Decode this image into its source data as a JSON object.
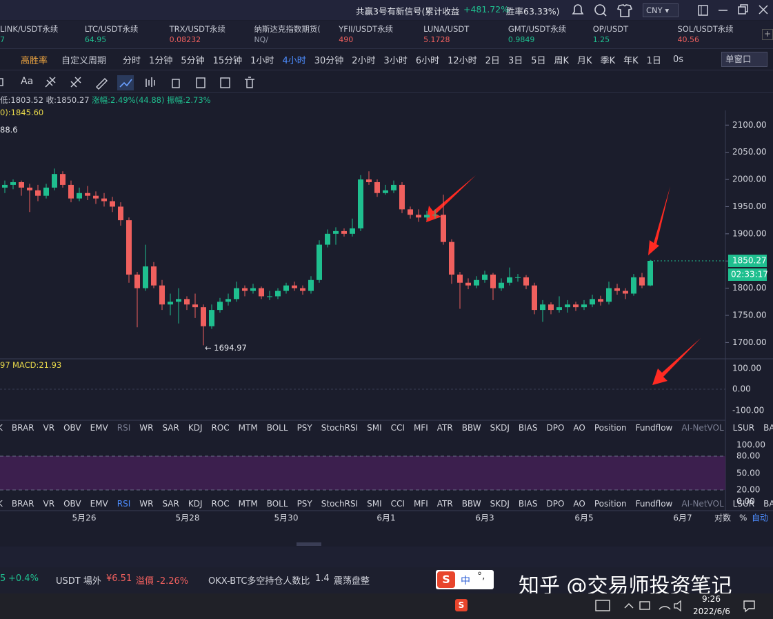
{
  "header": {
    "signal": "共赢3号有新信号(累计收益",
    "gain": "+481.72%",
    "winrate": "胜率63.33%)",
    "currency": "CNY"
  },
  "tickers": [
    {
      "name": "LINK/USDT永续",
      "price": "7",
      "color": "#1fbf8f"
    },
    {
      "name": "LTC/USDT永续",
      "price": "64.95",
      "color": "#1fbf8f"
    },
    {
      "name": "TRX/USDT永续",
      "price": "0.08232",
      "color": "#f0605e"
    },
    {
      "name": "纳斯达克指数期货(",
      "price": "NQ/",
      "color": "#9aa0b0"
    },
    {
      "name": "YFII/USDT永续",
      "price": "490",
      "color": "#f0605e"
    },
    {
      "name": "LUNA/USDT",
      "price": "5.1728",
      "color": "#f0605e"
    },
    {
      "name": "GMT/USDT永续",
      "price": "0.9849",
      "color": "#1fbf8f"
    },
    {
      "name": "OP/USDT",
      "price": "1.25",
      "color": "#1fbf8f"
    },
    {
      "name": "SOL/USDT永续",
      "price": "40.56",
      "color": "#f0605e"
    }
  ],
  "periods": {
    "badge": "高胜率",
    "custom": "自定义周期",
    "items": [
      "分时",
      "1分钟",
      "5分钟",
      "15分钟",
      "1小时",
      "4小时",
      "30分钟",
      "2小时",
      "3小时",
      "6小时",
      "12小时",
      "2日",
      "3日",
      "5日",
      "周K",
      "月K",
      "季K",
      "年K",
      "1日"
    ],
    "active": "4小时",
    "timer": "0s",
    "window": "单窗口"
  },
  "toolbar": {
    "text": "Aa"
  },
  "info": {
    "low": "低:1803.52",
    "close": "收:1850.27",
    "change": "涨幅:2.49%(44.88)",
    "amp": "振幅:2.73%",
    "ma": "0):1845.60",
    "ma2": "88.6"
  },
  "chart_data": {
    "type": "candlestick",
    "ylim": [
      1670,
      2127
    ],
    "yticks": [
      {
        "value": 1700,
        "label": "1700.00"
      },
      {
        "value": 1750,
        "label": "1750.00"
      },
      {
        "value": 1800,
        "label": "1800.00"
      },
      {
        "value": 1850,
        "label": "1850.00"
      },
      {
        "value": 1900,
        "label": "1900.00"
      },
      {
        "value": 1950,
        "label": "1950.00"
      },
      {
        "value": 2000,
        "label": "2000.00"
      },
      {
        "value": 2050,
        "label": "2050.00"
      },
      {
        "value": 2100,
        "label": "2100.00"
      }
    ],
    "up_color": "#1fbf8f",
    "down_color": "#f0605e",
    "candles": [
      [
        1985,
        1998,
        1975,
        1990
      ],
      [
        1990,
        2000,
        1982,
        1995
      ],
      [
        1995,
        1998,
        1970,
        1985
      ],
      [
        1985,
        1992,
        1940,
        1980
      ],
      [
        1980,
        1990,
        1960,
        1970
      ],
      [
        1970,
        1992,
        1965,
        1985
      ],
      [
        1985,
        2020,
        1980,
        2010
      ],
      [
        2010,
        2015,
        1985,
        1990
      ],
      [
        1990,
        1998,
        1958,
        1965
      ],
      [
        1965,
        1985,
        1960,
        1975
      ],
      [
        1975,
        1988,
        1962,
        1970
      ],
      [
        1970,
        1978,
        1955,
        1965
      ],
      [
        1965,
        1975,
        1950,
        1960
      ],
      [
        1960,
        1968,
        1940,
        1950
      ],
      [
        1950,
        1958,
        1915,
        1925
      ],
      [
        1925,
        1930,
        1810,
        1825
      ],
      [
        1825,
        1830,
        1728,
        1800
      ],
      [
        1800,
        1880,
        1795,
        1840
      ],
      [
        1840,
        1848,
        1800,
        1805
      ],
      [
        1805,
        1815,
        1760,
        1770
      ],
      [
        1770,
        1790,
        1750,
        1775
      ],
      [
        1775,
        1800,
        1735,
        1780
      ],
      [
        1780,
        1785,
        1760,
        1770
      ],
      [
        1770,
        1790,
        1745,
        1765
      ],
      [
        1765,
        1770,
        1694.97,
        1730
      ],
      [
        1730,
        1770,
        1725,
        1760
      ],
      [
        1760,
        1782,
        1755,
        1775
      ],
      [
        1775,
        1790,
        1768,
        1780
      ],
      [
        1780,
        1812,
        1775,
        1800
      ],
      [
        1800,
        1805,
        1785,
        1795
      ],
      [
        1795,
        1808,
        1790,
        1800
      ],
      [
        1800,
        1803,
        1780,
        1785
      ],
      [
        1785,
        1795,
        1778,
        1785
      ],
      [
        1785,
        1800,
        1780,
        1795
      ],
      [
        1795,
        1810,
        1790,
        1805
      ],
      [
        1805,
        1812,
        1795,
        1800
      ],
      [
        1800,
        1805,
        1788,
        1795
      ],
      [
        1795,
        1822,
        1790,
        1815
      ],
      [
        1815,
        1888,
        1810,
        1880
      ],
      [
        1880,
        1908,
        1875,
        1900
      ],
      [
        1900,
        1912,
        1880,
        1905
      ],
      [
        1905,
        1910,
        1895,
        1900
      ],
      [
        1900,
        1928,
        1895,
        1910
      ],
      [
        1910,
        2008,
        1905,
        2000
      ],
      [
        2000,
        2015,
        1990,
        1995
      ],
      [
        1995,
        2000,
        1968,
        1975
      ],
      [
        1975,
        1990,
        1972,
        1980
      ],
      [
        1980,
        1998,
        1975,
        1990
      ],
      [
        1990,
        1995,
        1938,
        1945
      ],
      [
        1945,
        1950,
        1928,
        1935
      ],
      [
        1935,
        1945,
        1922,
        1930
      ],
      [
        1930,
        1942,
        1925,
        1935
      ],
      [
        1935,
        1945,
        1928,
        1935
      ],
      [
        1935,
        1972,
        1880,
        1885
      ],
      [
        1885,
        1890,
        1808,
        1825
      ],
      [
        1825,
        1830,
        1762,
        1810
      ],
      [
        1810,
        1818,
        1798,
        1805
      ],
      [
        1805,
        1822,
        1800,
        1815
      ],
      [
        1815,
        1832,
        1810,
        1825
      ],
      [
        1825,
        1828,
        1778,
        1800
      ],
      [
        1800,
        1818,
        1795,
        1810
      ],
      [
        1810,
        1838,
        1805,
        1820
      ],
      [
        1820,
        1826,
        1812,
        1820
      ],
      [
        1820,
        1824,
        1798,
        1805
      ],
      [
        1805,
        1810,
        1752,
        1760
      ],
      [
        1760,
        1778,
        1738,
        1770
      ],
      [
        1770,
        1774,
        1752,
        1760
      ],
      [
        1760,
        1785,
        1755,
        1765
      ],
      [
        1765,
        1778,
        1755,
        1770
      ],
      [
        1770,
        1775,
        1758,
        1765
      ],
      [
        1765,
        1778,
        1760,
        1770
      ],
      [
        1770,
        1788,
        1765,
        1780
      ],
      [
        1780,
        1786,
        1768,
        1775
      ],
      [
        1775,
        1812,
        1770,
        1800
      ],
      [
        1800,
        1808,
        1788,
        1795
      ],
      [
        1795,
        1800,
        1780,
        1790
      ],
      [
        1790,
        1826,
        1786,
        1820
      ],
      [
        1820,
        1828,
        1800,
        1805
      ],
      [
        1805,
        1852,
        1803.52,
        1850.27
      ]
    ],
    "min_label": "← 1694.97",
    "last_price": 1850.27,
    "last_label": "1850.27",
    "countdown": "02:33:17"
  },
  "macd": {
    "prefix": "97",
    "label": "MACD:21.93",
    "ticks": [
      "100.00",
      "0.00",
      "-100.00"
    ]
  },
  "indicators": [
    "K",
    "BRAR",
    "VR",
    "OBV",
    "EMV",
    "RSI",
    "WR",
    "SAR",
    "KDJ",
    "ROC",
    "MTM",
    "BOLL",
    "PSY",
    "StochRSI",
    "SMI",
    "CCI",
    "MFI",
    "ATR",
    "BBW",
    "SKDJ",
    "BIAS",
    "DPO",
    "AO",
    "Position",
    "Fundflow",
    "AI-NetVOL",
    "LSUR",
    "BASIS"
  ],
  "rsi": {
    "ticks": [
      "100.00",
      "80.00",
      "50.00",
      "20.00",
      "0.00"
    ]
  },
  "dates": [
    "5月26",
    "5月28",
    "5月30",
    "6月1",
    "6月3",
    "6月5",
    "6月7"
  ],
  "axis_opts": [
    "对数",
    "%",
    "自动"
  ],
  "footer": {
    "a": "5",
    "b": "+0.4%",
    "c": "USDT 場外",
    "d": "¥6.51",
    "e": "溢價 -2.26%",
    "f": "OKX-BTC多空持仓人数比",
    "g": "1.4",
    "h": "震荡盘整"
  },
  "ime": "中",
  "watermark": "知乎 @交易师投资笔记",
  "taskbar": {
    "time": "9:26",
    "date": "2022/6/6"
  }
}
